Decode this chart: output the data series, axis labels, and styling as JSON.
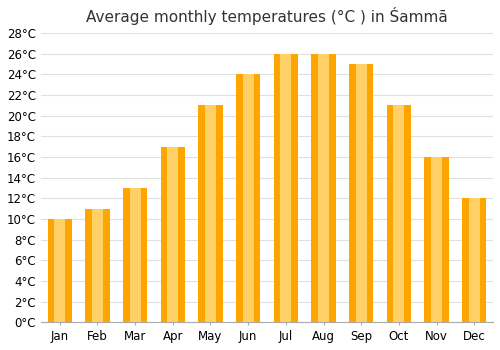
{
  "title": "Average monthly temperatures (°C ) in Śammā",
  "months": [
    "Jan",
    "Feb",
    "Mar",
    "Apr",
    "May",
    "Jun",
    "Jul",
    "Aug",
    "Sep",
    "Oct",
    "Nov",
    "Dec"
  ],
  "temperatures": [
    10,
    11,
    13,
    17,
    21,
    24,
    26,
    26,
    25,
    21,
    16,
    12
  ],
  "bar_color_main": "#FFA500",
  "bar_color_light": "#FFD066",
  "background_color": "#ffffff",
  "grid_color": "#e0e0e0",
  "ylim": [
    0,
    28
  ],
  "yticks": [
    0,
    2,
    4,
    6,
    8,
    10,
    12,
    14,
    16,
    18,
    20,
    22,
    24,
    26,
    28
  ],
  "ytick_labels": [
    "0°C",
    "2°C",
    "4°C",
    "6°C",
    "8°C",
    "10°C",
    "12°C",
    "14°C",
    "16°C",
    "18°C",
    "20°C",
    "22°C",
    "24°C",
    "26°C",
    "28°C"
  ],
  "title_fontsize": 11,
  "tick_fontsize": 8.5
}
